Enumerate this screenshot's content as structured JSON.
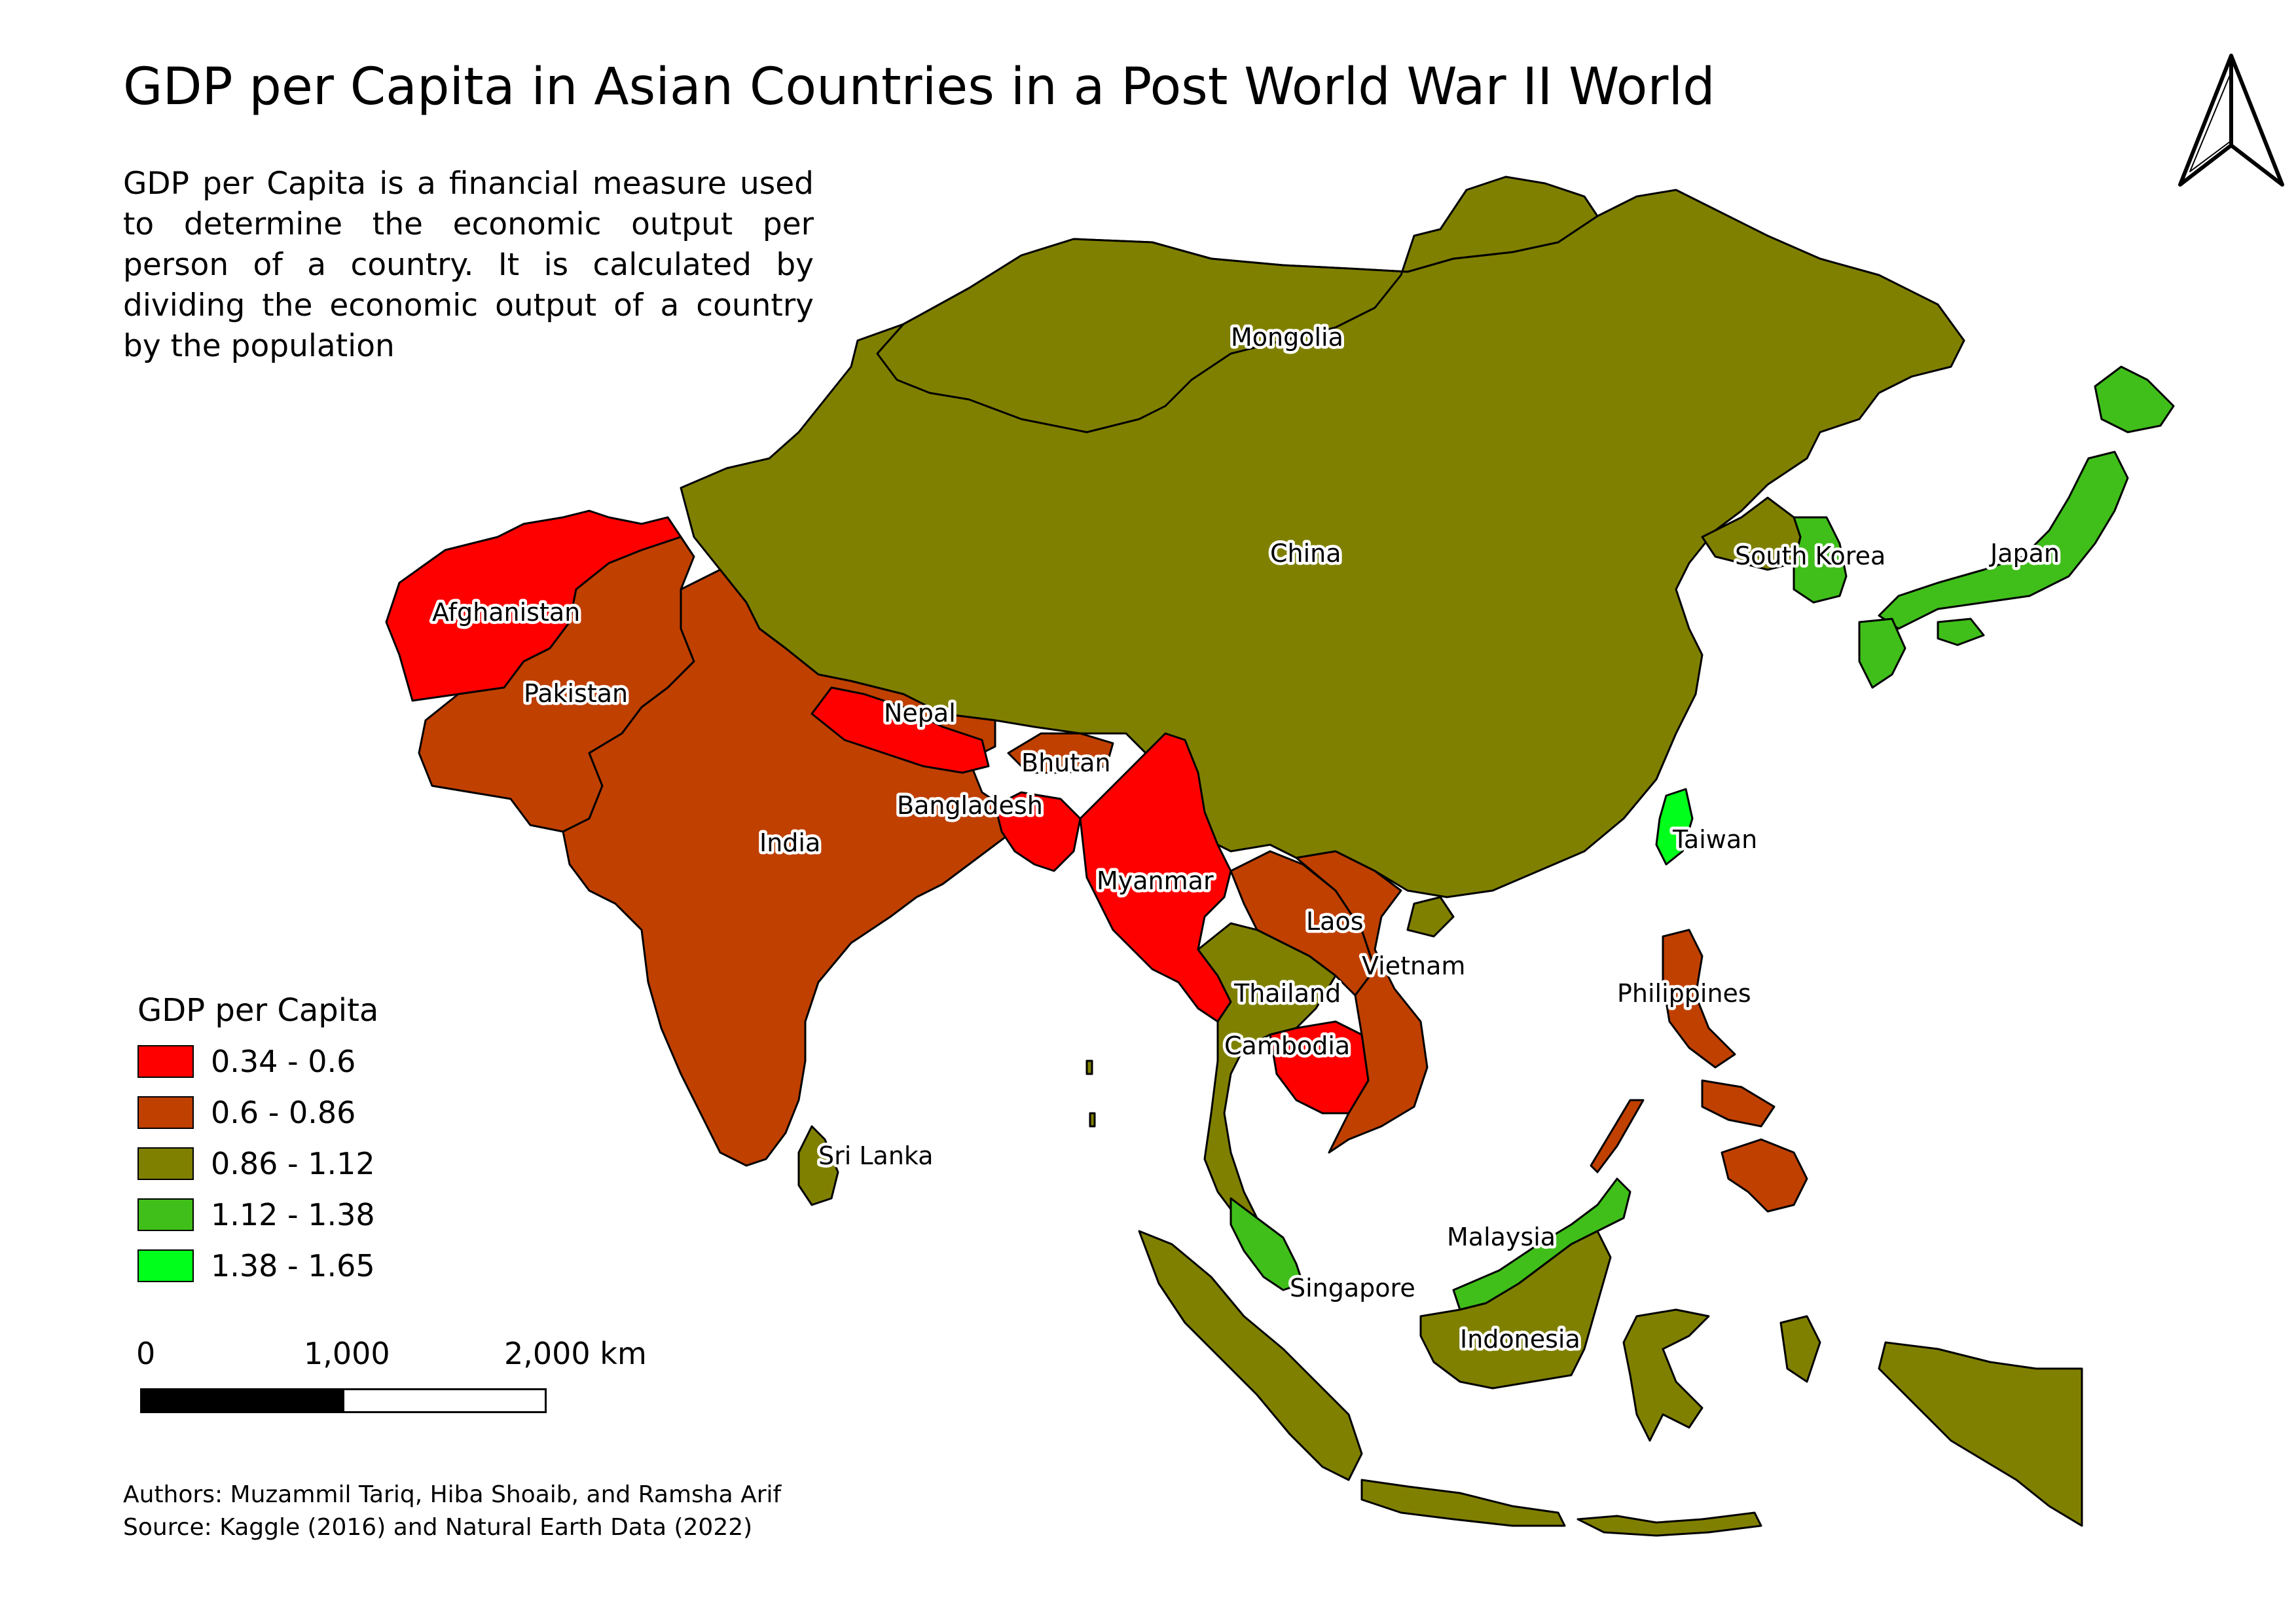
{
  "title": "GDP per Capita in Asian Countries in a Post World War II World",
  "description": "GDP per Capita is a financial measure used to determine the economic output per person of a country. It is calculated by dividing the economic output of a country by the population",
  "legend": {
    "title": "GDP per Capita",
    "classes": [
      {
        "label": "0.34 - 0.6",
        "color": "#ff0000"
      },
      {
        "label": "0.6 - 0.86",
        "color": "#c04000"
      },
      {
        "label": "0.86 - 1.12",
        "color": "#808000"
      },
      {
        "label": "1.12 - 1.38",
        "color": "#40bf1a"
      },
      {
        "label": "1.38 - 1.65",
        "color": "#00ff1a"
      }
    ]
  },
  "scalebar": {
    "labels": [
      "0",
      "1,000",
      "2,000 km"
    ]
  },
  "credits": {
    "authors": "Authors: Muzammil Tariq, Hiba Shoaib, and Ramsha Arif",
    "source": "Source: Kaggle (2016) and Natural Earth Data (2022)"
  },
  "countries": {
    "mongolia": "Mongolia",
    "china": "China",
    "south_korea": "South Korea",
    "japan": "Japan",
    "afghanistan": "Afghanistan",
    "pakistan": "Pakistan",
    "nepal": "Nepal",
    "bhutan": "Bhutan",
    "bangladesh": "Bangladesh",
    "india": "India",
    "myanmar": "Myanmar",
    "taiwan": "Taiwan",
    "laos": "Laos",
    "vietnam": "Vietnam",
    "thailand": "Thailand",
    "cambodia": "Cambodia",
    "philippines": "Philippines",
    "sri_lanka": "Sri Lanka",
    "malaysia": "Malaysia",
    "singapore": "Singapore",
    "indonesia": "Indonesia"
  },
  "colors": {
    "class_1": "#ff0000",
    "class_2": "#c04000",
    "class_3": "#808000",
    "class_4": "#40bf1a",
    "class_5": "#00ff1a",
    "outline": "#000000"
  }
}
